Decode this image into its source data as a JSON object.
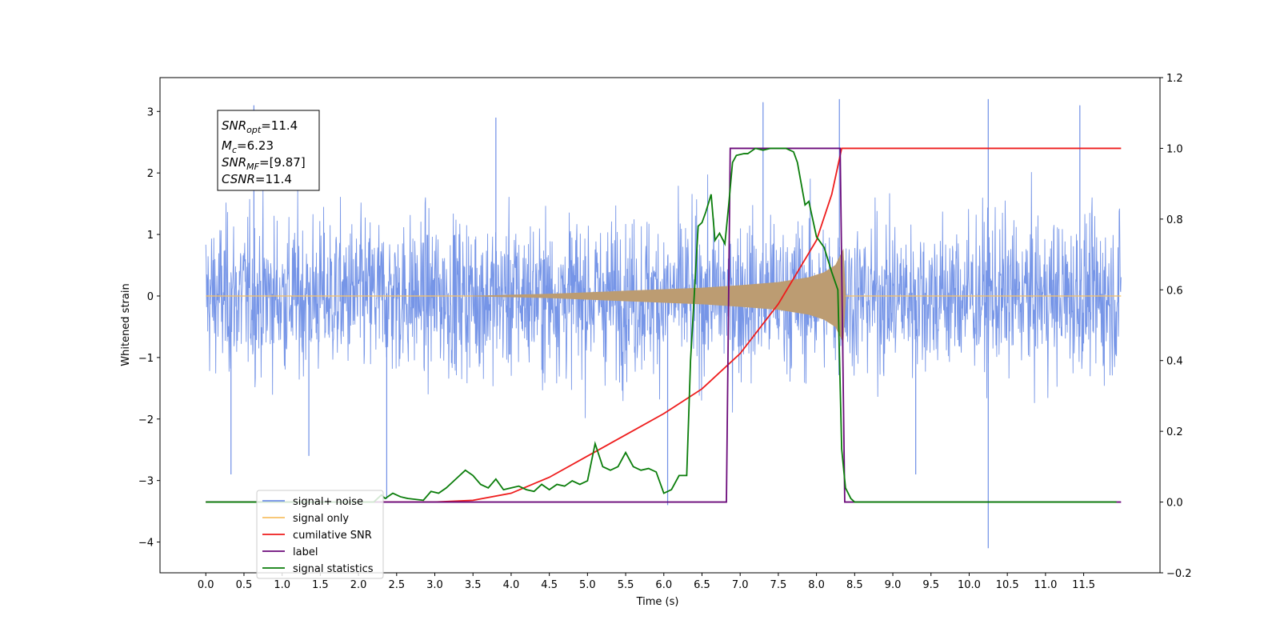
{
  "chart_data": {
    "type": "line",
    "xlabel": "Time (s)",
    "ylabel": "Whitened strain",
    "xlim": [
      -0.6,
      12.5
    ],
    "ylim": [
      -4.5,
      3.55
    ],
    "y2lim": [
      -0.2,
      1.2
    ],
    "grid": false,
    "legend_position": "lower-left",
    "x_ticks": [
      "0.0",
      "0.5",
      "1.0",
      "1.5",
      "2.0",
      "2.5",
      "3.0",
      "3.5",
      "4.0",
      "4.5",
      "5.0",
      "5.5",
      "6.0",
      "6.5",
      "7.0",
      "7.5",
      "8.0",
      "8.5",
      "9.0",
      "9.5",
      "10.0",
      "10.5",
      "11.0",
      "11.5"
    ],
    "y_ticks": [
      "3",
      "2",
      "1",
      "0",
      "−1",
      "−2",
      "−3",
      "−4"
    ],
    "y2_ticks": [
      "1.2",
      "1.0",
      "0.8",
      "0.6",
      "0.4",
      "0.2",
      "0.0",
      "−0.2"
    ],
    "annotation": {
      "snr_opt_main": "SNR",
      "snr_opt_sub": "opt",
      "snr_opt_value": "=11.4",
      "mc_main": "M",
      "mc_sub": "c",
      "mc_value": "=6.23",
      "snr_mf_main": "SNR",
      "snr_mf_sub": "MF",
      "snr_mf_value": "=[9.87]",
      "csnr_main": "CSNR",
      "csnr_value": "=11.4"
    },
    "colors": {
      "noise": "#6f8fe6",
      "signal": "#f7c165",
      "signal_fill": "#bc9c72",
      "cumulative_snr": "#ee1c1c",
      "label": "#6b0a7a",
      "statistics": "#0a7d0a"
    },
    "series": [
      {
        "name": "signal+ noise",
        "axis": "left",
        "description_range": [
          0,
          11.99
        ],
        "envelope": [
          {
            "x": 0.0,
            "lo": -1.7,
            "hi": 1.6
          },
          {
            "x": 11.99,
            "lo": -1.7,
            "hi": 1.6
          }
        ],
        "spikes": [
          {
            "x": 0.33,
            "y": -2.9
          },
          {
            "x": 0.63,
            "y": 3.1
          },
          {
            "x": 1.35,
            "y": -2.6
          },
          {
            "x": 2.37,
            "y": -3.3
          },
          {
            "x": 6.05,
            "y": -3.4
          },
          {
            "x": 8.3,
            "y": 3.2
          },
          {
            "x": 10.25,
            "y": 3.2
          },
          {
            "x": 10.25,
            "y": -4.1
          },
          {
            "x": 11.45,
            "y": 3.1
          },
          {
            "x": 9.3,
            "y": -2.9
          },
          {
            "x": 7.3,
            "y": 3.15
          },
          {
            "x": 3.8,
            "y": 2.9
          }
        ]
      },
      {
        "name": "signal only",
        "axis": "left",
        "envelope": [
          {
            "x": 3.5,
            "amp": 0.0
          },
          {
            "x": 4.5,
            "amp": 0.03
          },
          {
            "x": 5.5,
            "amp": 0.08
          },
          {
            "x": 6.5,
            "amp": 0.13
          },
          {
            "x": 7.0,
            "amp": 0.17
          },
          {
            "x": 7.5,
            "amp": 0.22
          },
          {
            "x": 7.9,
            "amp": 0.3
          },
          {
            "x": 8.1,
            "amp": 0.38
          },
          {
            "x": 8.25,
            "amp": 0.5
          },
          {
            "x": 8.35,
            "amp": 0.75
          },
          {
            "x": 8.38,
            "amp": 0.02
          }
        ]
      },
      {
        "name": "cumilative SNR",
        "axis": "right",
        "x": [
          0.0,
          3.0,
          3.5,
          4.0,
          4.5,
          5.0,
          5.5,
          6.0,
          6.5,
          7.0,
          7.5,
          8.0,
          8.2,
          8.33,
          8.34,
          11.99
        ],
        "y": [
          0.0,
          0.0,
          0.005,
          0.025,
          0.07,
          0.13,
          0.19,
          0.25,
          0.32,
          0.42,
          0.56,
          0.74,
          0.87,
          1.0,
          1.0,
          1.0
        ]
      },
      {
        "name": "label",
        "axis": "right",
        "x": [
          0.0,
          6.82,
          6.87,
          8.31,
          8.37,
          11.99
        ],
        "y": [
          0.0,
          0.0,
          1.0,
          1.0,
          0.0,
          0.0
        ]
      },
      {
        "name": "signal statistics",
        "axis": "right",
        "x": [
          0.0,
          2.2,
          2.3,
          2.35,
          2.45,
          2.55,
          2.65,
          2.85,
          2.95,
          3.05,
          3.15,
          3.3,
          3.4,
          3.5,
          3.6,
          3.7,
          3.8,
          3.9,
          4.0,
          4.1,
          4.2,
          4.3,
          4.4,
          4.5,
          4.6,
          4.7,
          4.8,
          4.9,
          5.0,
          5.1,
          5.2,
          5.3,
          5.4,
          5.5,
          5.6,
          5.7,
          5.8,
          5.9,
          6.0,
          6.1,
          6.2,
          6.3,
          6.35,
          6.45,
          6.5,
          6.55,
          6.62,
          6.67,
          6.73,
          6.8,
          6.85,
          6.9,
          6.95,
          7.05,
          7.1,
          7.2,
          7.3,
          7.4,
          7.5,
          7.6,
          7.7,
          7.75,
          7.8,
          7.85,
          7.9,
          8.0,
          8.1,
          8.2,
          8.28,
          8.33,
          8.38,
          8.45,
          8.5,
          11.93
        ],
        "y": [
          0.0,
          0.0,
          0.02,
          0.01,
          0.025,
          0.015,
          0.01,
          0.005,
          0.03,
          0.025,
          0.04,
          0.07,
          0.09,
          0.075,
          0.05,
          0.04,
          0.065,
          0.035,
          0.04,
          0.045,
          0.035,
          0.03,
          0.05,
          0.035,
          0.05,
          0.045,
          0.06,
          0.05,
          0.06,
          0.165,
          0.1,
          0.09,
          0.1,
          0.14,
          0.1,
          0.09,
          0.095,
          0.085,
          0.025,
          0.035,
          0.075,
          0.075,
          0.4,
          0.78,
          0.79,
          0.82,
          0.87,
          0.74,
          0.76,
          0.73,
          0.84,
          0.96,
          0.98,
          0.985,
          0.985,
          1.0,
          0.995,
          1.0,
          1.0,
          1.0,
          0.99,
          0.96,
          0.9,
          0.84,
          0.85,
          0.75,
          0.72,
          0.65,
          0.6,
          0.15,
          0.04,
          0.01,
          0.0,
          0.0
        ]
      }
    ]
  }
}
